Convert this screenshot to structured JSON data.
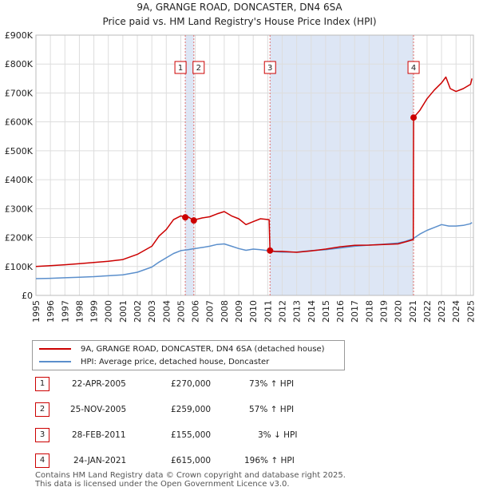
{
  "title_line1": "9A, GRANGE ROAD, DONCASTER, DN4 6SA",
  "title_line2": "Price paid vs. HM Land Registry's House Price Index (HPI)",
  "colors": {
    "property": "#cc0000",
    "hpi": "#5b8fcc",
    "shade": "#dde6f5",
    "grid": "#dddddd",
    "marker_line": "#e07070"
  },
  "legend": {
    "property_label": "9A, GRANGE ROAD, DONCASTER, DN4 6SA (detached house)",
    "hpi_label": "HPI: Average price, detached house, Doncaster"
  },
  "sales": [
    {
      "num": "1",
      "date": "22-APR-2005",
      "price": "£270,000",
      "hpi": "73% ↑ HPI"
    },
    {
      "num": "2",
      "date": "25-NOV-2005",
      "price": "£259,000",
      "hpi": "57% ↑ HPI"
    },
    {
      "num": "3",
      "date": "28-FEB-2011",
      "price": "£155,000",
      "hpi": "3% ↓ HPI"
    },
    {
      "num": "4",
      "date": "24-JAN-2021",
      "price": "£615,000",
      "hpi": "196% ↑ HPI"
    }
  ],
  "footer_line1": "Contains HM Land Registry data © Crown copyright and database right 2025.",
  "footer_line2": "This data is licensed under the Open Government Licence v3.0.",
  "chart_data": {
    "type": "line",
    "xlim": [
      1995,
      2025.2
    ],
    "ylim": [
      0,
      900000
    ],
    "yticks": [
      0,
      100000,
      200000,
      300000,
      400000,
      500000,
      600000,
      700000,
      800000,
      900000
    ],
    "ytick_labels": [
      "£0",
      "£100K",
      "£200K",
      "£300K",
      "£400K",
      "£500K",
      "£600K",
      "£700K",
      "£800K",
      "£900K"
    ],
    "xticks": [
      1995,
      1996,
      1997,
      1998,
      1999,
      2000,
      2001,
      2002,
      2003,
      2004,
      2005,
      2006,
      2007,
      2008,
      2009,
      2010,
      2011,
      2012,
      2013,
      2014,
      2015,
      2016,
      2017,
      2018,
      2019,
      2020,
      2021,
      2022,
      2023,
      2024,
      2025
    ],
    "shaded_ranges": [
      [
        2005.31,
        2005.9
      ],
      [
        2011.16,
        2021.07
      ]
    ],
    "sale_markers": [
      {
        "label": "1",
        "x": 2005.31,
        "y": 270000
      },
      {
        "label": "2",
        "x": 2005.9,
        "y": 259000
      },
      {
        "label": "3",
        "x": 2011.16,
        "y": 155000
      },
      {
        "label": "4",
        "x": 2021.07,
        "y": 615000
      }
    ],
    "series": [
      {
        "name": "9A, GRANGE ROAD, DONCASTER, DN4 6SA (detached house)",
        "x": [
          1995,
          1996,
          1997,
          1998,
          1999,
          2000,
          2001,
          2002,
          2003,
          2003.5,
          2004,
          2004.5,
          2005,
          2005.31,
          2005.5,
          2005.9,
          2006,
          2006.5,
          2007,
          2007.5,
          2008,
          2008.5,
          2009,
          2009.5,
          2010,
          2010.5,
          2011.1,
          2011.16,
          2011.5,
          2012,
          2013,
          2014,
          2015,
          2016,
          2017,
          2018,
          2019,
          2020,
          2020.5,
          2021.05,
          2021.07,
          2021.5,
          2022,
          2022.5,
          2023,
          2023.3,
          2023.6,
          2024,
          2024.5,
          2025,
          2025.1
        ],
        "values": [
          100000,
          103000,
          106000,
          110000,
          114000,
          118000,
          124000,
          142000,
          170000,
          205000,
          228000,
          262000,
          275000,
          270000,
          272000,
          259000,
          262000,
          268000,
          272000,
          282000,
          290000,
          275000,
          265000,
          245000,
          255000,
          265000,
          262000,
          155000,
          152000,
          152000,
          149000,
          154000,
          160000,
          168000,
          173000,
          174000,
          176000,
          178000,
          185000,
          193000,
          615000,
          640000,
          680000,
          710000,
          735000,
          755000,
          715000,
          705000,
          715000,
          730000,
          750000
        ]
      },
      {
        "name": "HPI: Average price, detached house, Doncaster",
        "x": [
          1995,
          1996,
          1997,
          1998,
          1999,
          2000,
          2001,
          2002,
          2003,
          2003.5,
          2004,
          2004.5,
          2005,
          2005.5,
          2006,
          2006.5,
          2007,
          2007.5,
          2008,
          2008.5,
          2009,
          2009.5,
          2010,
          2010.5,
          2011,
          2011.5,
          2012,
          2013,
          2014,
          2015,
          2016,
          2017,
          2018,
          2019,
          2020,
          2020.5,
          2021,
          2021.5,
          2022,
          2022.5,
          2023,
          2023.5,
          2024,
          2024.5,
          2025,
          2025.1
        ],
        "values": [
          58000,
          59000,
          61000,
          63000,
          65000,
          68000,
          71000,
          80000,
          98000,
          115000,
          130000,
          145000,
          155000,
          158000,
          162000,
          166000,
          170000,
          176000,
          178000,
          170000,
          162000,
          156000,
          160000,
          158000,
          155000,
          151000,
          150000,
          150000,
          155000,
          158000,
          164000,
          170000,
          174000,
          177000,
          181000,
          187000,
          195000,
          212000,
          225000,
          235000,
          245000,
          240000,
          240000,
          242000,
          248000,
          252000
        ]
      }
    ]
  }
}
